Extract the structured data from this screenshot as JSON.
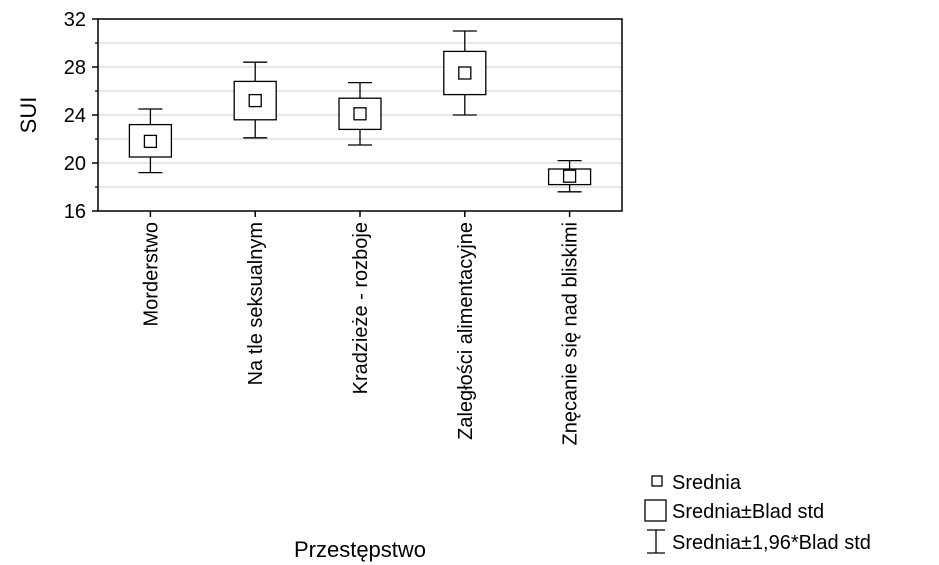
{
  "chart_data": {
    "type": "box",
    "ylabel": "SUI",
    "xlabel": "Przestępstwo",
    "ylim": [
      16,
      32
    ],
    "yticks": [
      "16",
      "20",
      "24",
      "28",
      "32"
    ],
    "minor_grid": true,
    "legend_position": "bottom-right",
    "categories": [
      "Morderstwo",
      "Na tle seksualnym",
      "Kradzieże - rozboje",
      "Zaległości alimentacyjne",
      "Znęcanie się nad bliskimi"
    ],
    "series": [
      {
        "name": "Srednia",
        "values": [
          21.8,
          25.2,
          24.1,
          27.5,
          18.9
        ]
      },
      {
        "name": "Srednia±Blad std",
        "low": [
          20.5,
          23.6,
          22.8,
          25.7,
          18.2
        ],
        "high": [
          23.2,
          26.8,
          25.4,
          29.3,
          19.5
        ]
      },
      {
        "name": "Srednia±1,96*Blad std",
        "low": [
          19.2,
          22.1,
          21.5,
          24.0,
          17.6
        ],
        "high": [
          24.5,
          28.4,
          26.7,
          31.0,
          20.2
        ]
      }
    ]
  },
  "legend": {
    "mean": "Srednia",
    "se": "Srednia±Blad std",
    "ci": "Srednia±1,96*Blad std"
  }
}
